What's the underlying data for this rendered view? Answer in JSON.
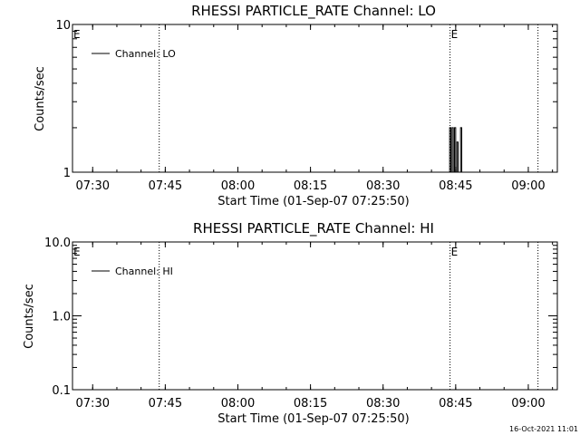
{
  "chart_data": [
    {
      "type": "line",
      "title": "RHESSI PARTICLE_RATE Channel: LO",
      "xlabel": "Start Time (01-Sep-07 07:25:50)",
      "ylabel": "Counts/sec",
      "yscale": "log",
      "ylim": [
        1,
        10
      ],
      "xlim": [
        "07:25:50",
        "09:06:00"
      ],
      "x_ticks": [
        "07:30",
        "07:45",
        "08:00",
        "08:15",
        "08:30",
        "08:45",
        "09:00"
      ],
      "y_ticks": [
        "1",
        "10"
      ],
      "legend": [
        "Channel: LO"
      ],
      "legend_position": "top-left",
      "event_markers": [
        {
          "time": "07:25:50",
          "label": "E"
        },
        {
          "time": "07:43:45",
          "label": ""
        },
        {
          "time": "08:43:50",
          "label": "E"
        },
        {
          "time": "09:02:00",
          "label": ""
        }
      ],
      "series": [
        {
          "name": "Channel: LO",
          "x": [
            "08:43:30",
            "08:43:45",
            "08:44:00",
            "08:44:15",
            "08:44:30",
            "08:44:45",
            "08:45:00",
            "08:45:15",
            "08:45:30",
            "08:45:45",
            "08:46:00",
            "08:46:15",
            "08:46:30"
          ],
          "y": [
            1,
            2,
            1,
            2,
            1,
            2,
            1,
            1.6,
            1,
            1,
            2,
            1,
            1
          ]
        }
      ]
    },
    {
      "type": "line",
      "title": "RHESSI PARTICLE_RATE Channel: HI",
      "xlabel": "Start Time (01-Sep-07 07:25:50)",
      "ylabel": "Counts/sec",
      "yscale": "log",
      "ylim": [
        0.1,
        10
      ],
      "xlim": [
        "07:25:50",
        "09:06:00"
      ],
      "x_ticks": [
        "07:30",
        "07:45",
        "08:00",
        "08:15",
        "08:30",
        "08:45",
        "09:00"
      ],
      "y_ticks": [
        "0.1",
        "1.0",
        "10.0"
      ],
      "legend": [
        "Channel: HI"
      ],
      "legend_position": "top-left",
      "event_markers": [
        {
          "time": "07:25:50",
          "label": "E"
        },
        {
          "time": "07:43:45",
          "label": ""
        },
        {
          "time": "08:43:50",
          "label": "E"
        },
        {
          "time": "09:02:00",
          "label": ""
        }
      ],
      "series": [
        {
          "name": "Channel: HI",
          "x": [],
          "y": []
        }
      ]
    }
  ],
  "footer": {
    "timestamp": "16-Oct-2021 11:01"
  }
}
